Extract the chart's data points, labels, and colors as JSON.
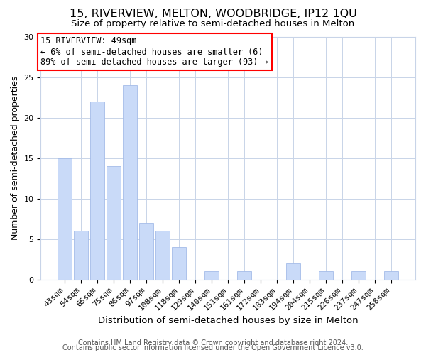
{
  "title": "15, RIVERVIEW, MELTON, WOODBRIDGE, IP12 1QU",
  "subtitle": "Size of property relative to semi-detached houses in Melton",
  "xlabel": "Distribution of semi-detached houses by size in Melton",
  "ylabel": "Number of semi-detached properties",
  "categories": [
    "43sqm",
    "54sqm",
    "65sqm",
    "75sqm",
    "86sqm",
    "97sqm",
    "108sqm",
    "118sqm",
    "129sqm",
    "140sqm",
    "151sqm",
    "161sqm",
    "172sqm",
    "183sqm",
    "194sqm",
    "204sqm",
    "215sqm",
    "226sqm",
    "237sqm",
    "247sqm",
    "258sqm"
  ],
  "values": [
    15,
    6,
    22,
    14,
    24,
    7,
    6,
    4,
    0,
    1,
    0,
    1,
    0,
    0,
    2,
    0,
    1,
    0,
    1,
    0,
    1
  ],
  "bar_color": "#c9daf8",
  "bar_edge_color": "#a4bce8",
  "ylim": [
    0,
    30
  ],
  "yticks": [
    0,
    5,
    10,
    15,
    20,
    25,
    30
  ],
  "annotation_title": "15 RIVERVIEW: 49sqm",
  "annotation_line1": "← 6% of semi-detached houses are smaller (6)",
  "annotation_line2": "89% of semi-detached houses are larger (93) →",
  "footer1": "Contains HM Land Registry data © Crown copyright and database right 2024.",
  "footer2": "Contains public sector information licensed under the Open Government Licence v3.0.",
  "bg_color": "#ffffff",
  "grid_color": "#c8d4e8",
  "title_fontsize": 11.5,
  "subtitle_fontsize": 9.5,
  "xlabel_fontsize": 9.5,
  "ylabel_fontsize": 9,
  "tick_fontsize": 8,
  "annot_fontsize": 8.5,
  "footer_fontsize": 7
}
